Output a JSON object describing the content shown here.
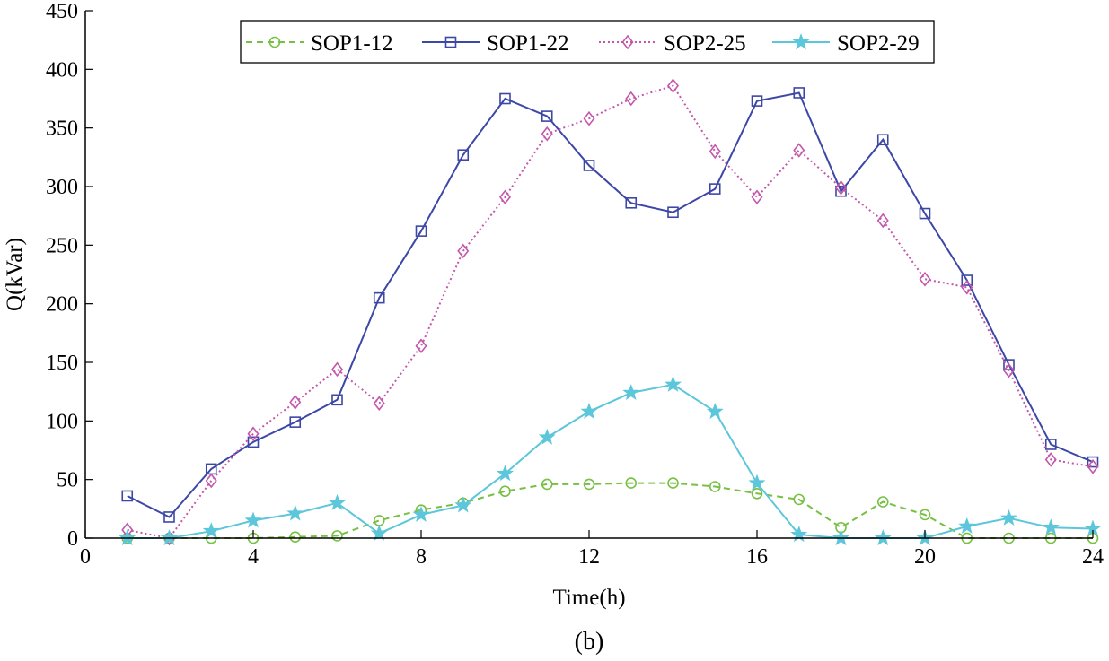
{
  "chart_data": {
    "type": "line",
    "title": "",
    "caption": "(b)",
    "xlabel": "Time(h)",
    "ylabel": "Q(kVar)",
    "xlim": [
      0,
      24
    ],
    "ylim": [
      0,
      450
    ],
    "xticks": [
      0,
      4,
      8,
      12,
      16,
      20,
      24
    ],
    "yticks": [
      0,
      50,
      100,
      150,
      200,
      250,
      300,
      350,
      400,
      450
    ],
    "grid": false,
    "legend_position": "top-center",
    "x": [
      1,
      2,
      3,
      4,
      5,
      6,
      7,
      8,
      9,
      10,
      11,
      12,
      13,
      14,
      15,
      16,
      17,
      18,
      19,
      20,
      21,
      22,
      23,
      24
    ],
    "series": [
      {
        "name": "SOP1-12",
        "color": "#77c043",
        "marker": "circle",
        "dash": "dashed",
        "values": [
          0,
          0,
          0,
          0,
          1,
          2,
          15,
          24,
          30,
          40,
          46,
          46,
          47,
          47,
          44,
          38,
          33,
          9,
          31,
          20,
          0,
          0,
          0,
          0
        ]
      },
      {
        "name": "SOP1-22",
        "color": "#3d47a6",
        "marker": "square",
        "dash": "solid",
        "values": [
          36,
          18,
          59,
          82,
          99,
          118,
          205,
          262,
          327,
          375,
          360,
          318,
          286,
          278,
          298,
          373,
          380,
          296,
          340,
          277,
          220,
          148,
          80,
          65
        ]
      },
      {
        "name": "SOP2-25",
        "color": "#c457ab",
        "marker": "diamond",
        "dash": "dotted",
        "values": [
          7,
          0,
          49,
          89,
          116,
          144,
          115,
          164,
          245,
          291,
          345,
          358,
          375,
          386,
          330,
          291,
          331,
          299,
          271,
          221,
          214,
          143,
          67,
          61
        ]
      },
      {
        "name": "SOP2-29",
        "color": "#5cc6da",
        "marker": "star",
        "dash": "solid",
        "values": [
          0,
          0,
          6,
          15,
          21,
          30,
          4,
          20,
          28,
          55,
          86,
          108,
          124,
          131,
          108,
          47,
          3,
          0,
          0,
          0,
          10,
          17,
          9,
          8
        ]
      }
    ]
  }
}
